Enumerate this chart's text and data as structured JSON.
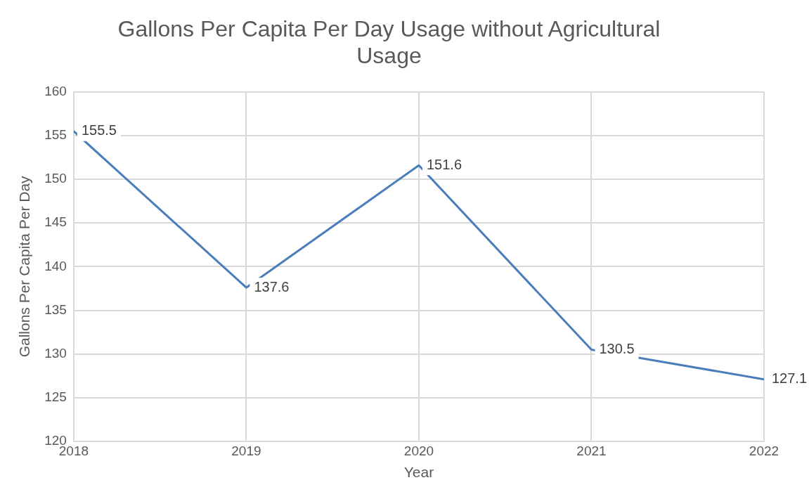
{
  "chart_data": {
    "type": "line",
    "title": "Gallons Per Capita Per Day Usage without Agricultural Usage",
    "xlabel": "Year",
    "ylabel": "Gallons Per Capita Per Day",
    "x": [
      2018,
      2019,
      2020,
      2021,
      2022
    ],
    "series": [
      {
        "color": "#4a7ebb",
        "values": [
          155.5,
          137.6,
          151.6,
          130.5,
          127.1
        ]
      }
    ],
    "xlim": [
      2018,
      2022
    ],
    "xticks": [
      2018,
      2019,
      2020,
      2021,
      2022
    ],
    "ylim": [
      120,
      160
    ],
    "yticks": [
      120,
      125,
      130,
      135,
      140,
      145,
      150,
      155,
      160
    ],
    "grid": true,
    "legend": false,
    "marker": "none",
    "line_style": "solid",
    "data_labels": true
  }
}
